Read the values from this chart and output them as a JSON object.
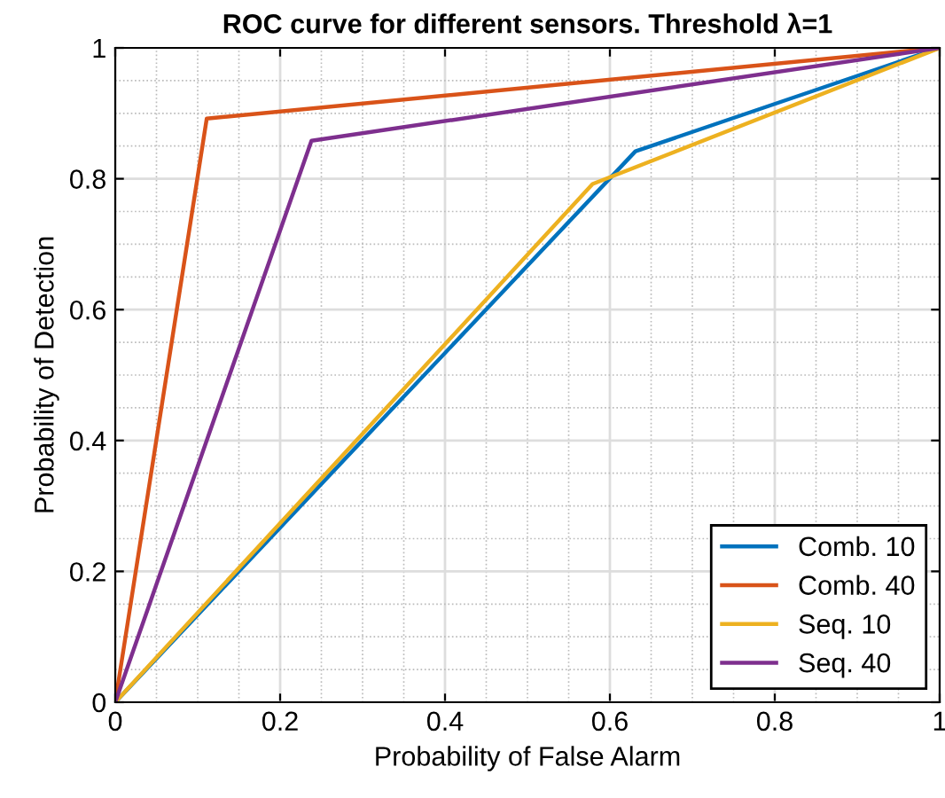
{
  "chart_data": {
    "type": "line",
    "title": "ROC curve for different sensors. Threshold λ=1",
    "xlabel": "Probability of False Alarm",
    "ylabel": "Probability of Detection",
    "xlim": [
      0,
      1
    ],
    "ylim": [
      0,
      1
    ],
    "xticks": [
      0,
      0.2,
      0.4,
      0.6,
      0.8,
      1
    ],
    "yticks": [
      0,
      0.2,
      0.4,
      0.6,
      0.8,
      1
    ],
    "grid": true,
    "legend": "bottom right",
    "marker": "none",
    "line_style": "solid",
    "series": [
      {
        "name": "Comb. 10",
        "color": "#0072bd",
        "x": [
          0,
          0.631,
          1
        ],
        "values": [
          0,
          0.842,
          1
        ]
      },
      {
        "name": "Comb. 40",
        "color": "#d95319",
        "x": [
          0,
          0.111,
          1
        ],
        "values": [
          0,
          0.892,
          1
        ]
      },
      {
        "name": "Seq. 10",
        "color": "#edb120",
        "x": [
          0,
          0.579,
          1
        ],
        "values": [
          0,
          0.792,
          1
        ]
      },
      {
        "name": "Seq. 40",
        "color": "#7e2f8e",
        "x": [
          0,
          0.238,
          1
        ],
        "values": [
          0,
          0.858,
          1
        ]
      }
    ]
  }
}
